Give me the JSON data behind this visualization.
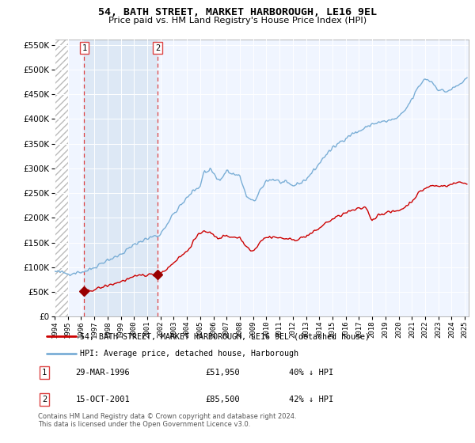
{
  "title": "54, BATH STREET, MARKET HARBOROUGH, LE16 9EL",
  "subtitle": "Price paid vs. HM Land Registry's House Price Index (HPI)",
  "legend_line1": "54, BATH STREET, MARKET HARBOROUGH, LE16 9EL (detached house)",
  "legend_line2": "HPI: Average price, detached house, Harborough",
  "footnote": "Contains HM Land Registry data © Crown copyright and database right 2024.\nThis data is licensed under the Open Government Licence v3.0.",
  "purchase1_date": "29-MAR-1996",
  "purchase1_price": 51950,
  "purchase1_label": "40% ↓ HPI",
  "purchase2_date": "15-OCT-2001",
  "purchase2_price": 85500,
  "purchase2_label": "42% ↓ HPI",
  "purchase1_x": 1996.24,
  "purchase2_x": 2001.79,
  "hpi_color": "#7aaed6",
  "price_color": "#cc0000",
  "marker_color": "#990000",
  "dashed_color": "#dd4444",
  "bg_plot": "#f0f5ff",
  "shade_between": "#dde8f5",
  "hatch_color": "#cccccc",
  "ylim": [
    0,
    560000
  ],
  "xlim_start": 1994.0,
  "xlim_end": 2025.3,
  "yticks": [
    0,
    50000,
    100000,
    150000,
    200000,
    250000,
    300000,
    350000,
    400000,
    450000,
    500000,
    550000
  ],
  "xticks": [
    1994,
    1995,
    1996,
    1997,
    1998,
    1999,
    2000,
    2001,
    2002,
    2003,
    2004,
    2005,
    2006,
    2007,
    2008,
    2009,
    2010,
    2011,
    2012,
    2013,
    2014,
    2015,
    2016,
    2017,
    2018,
    2019,
    2020,
    2021,
    2022,
    2023,
    2024,
    2025
  ]
}
